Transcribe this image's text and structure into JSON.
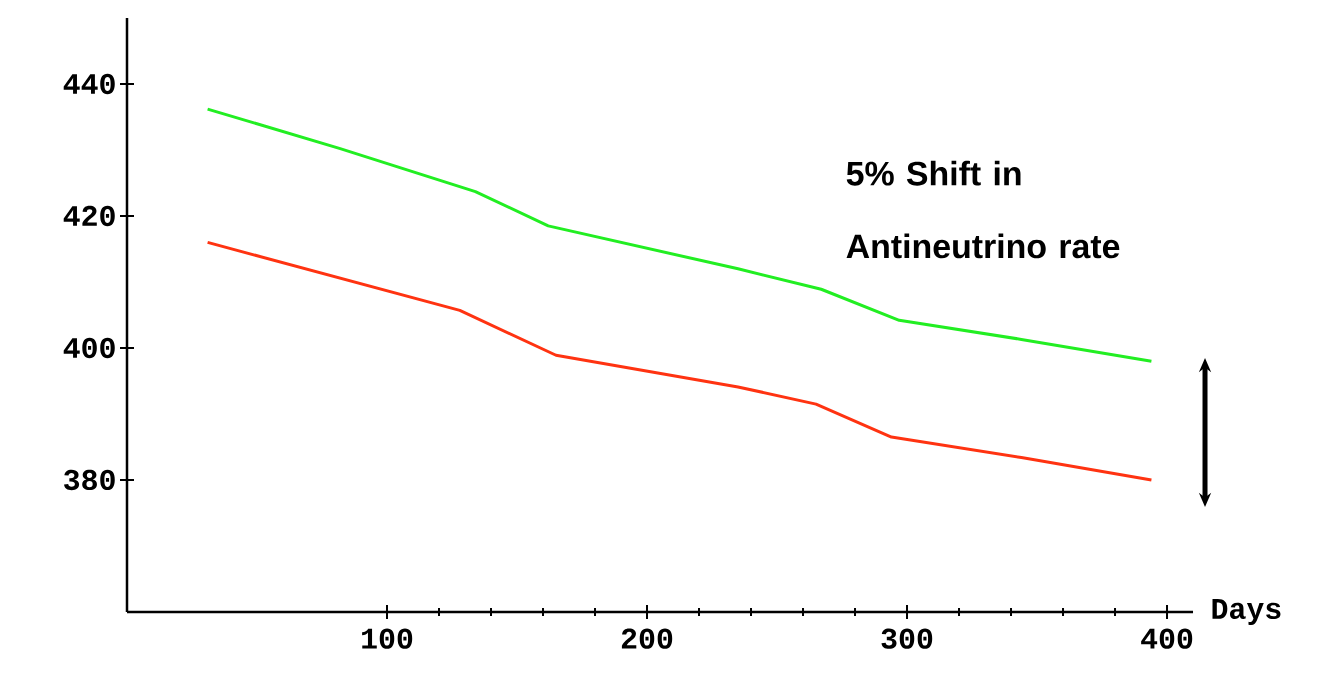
{
  "chart_data": {
    "type": "line",
    "xlabel": "Days",
    "annotations": [
      "5% Shift in Antineutrino rate"
    ],
    "x": [
      31,
      82,
      134,
      162,
      235,
      267,
      297,
      344,
      394
    ],
    "series": [
      {
        "color": "#22ee22",
        "values": [
          436.2,
          430.2,
          423.7,
          418.5,
          412.0,
          408.9,
          404.2,
          401.3,
          398.0
        ]
      },
      {
        "color": "#ff3311",
        "x": [
          31,
          128,
          165,
          235,
          265,
          294,
          344,
          394
        ],
        "values": [
          416.0,
          405.7,
          398.9,
          394.1,
          391.5,
          386.5,
          383.4,
          380.0
        ]
      }
    ],
    "xlim": [
      0,
      410
    ],
    "ylim": [
      360,
      450
    ],
    "xticks": [
      100,
      200,
      300,
      400
    ],
    "yticks": [
      380,
      400,
      420,
      440
    ],
    "grid": false,
    "marker": "none",
    "line_style": "solid"
  }
}
